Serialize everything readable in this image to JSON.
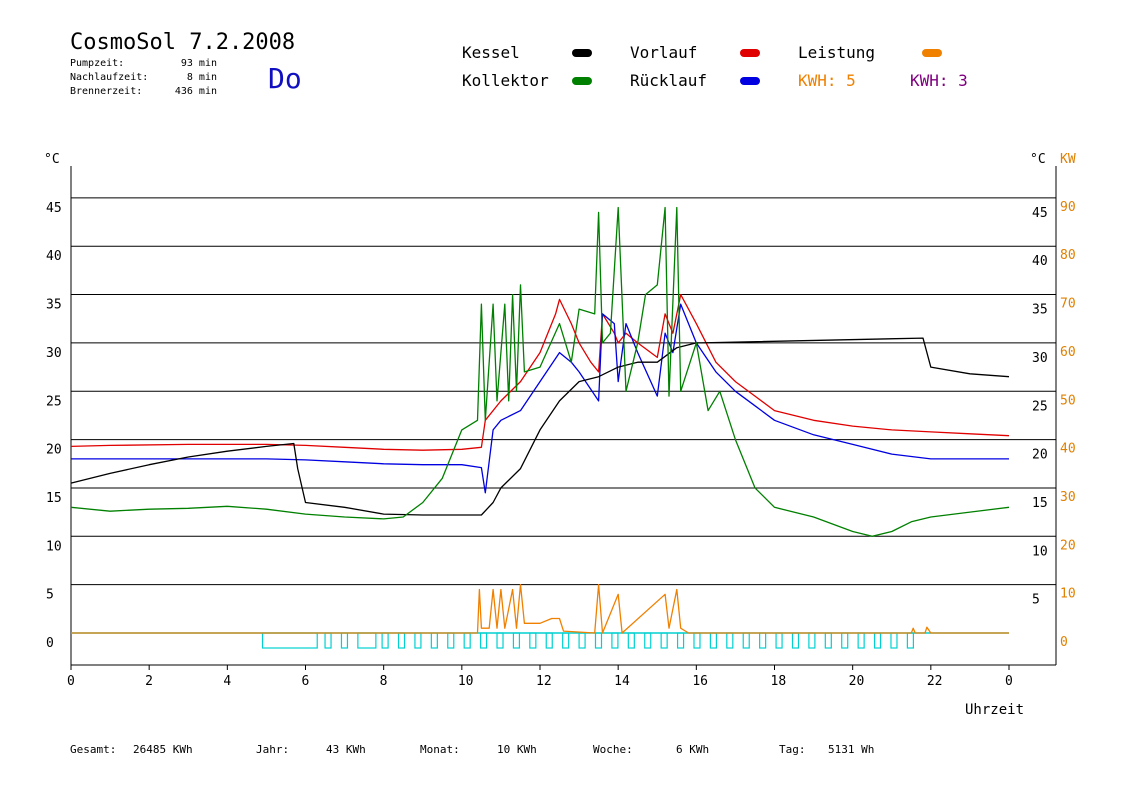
{
  "header": {
    "title": "CosmoSol 7.2.2008",
    "weekday": "Do",
    "stats": [
      {
        "label": "Pumpzeit:",
        "value": "93 min"
      },
      {
        "label": "Nachlaufzeit:",
        "value": "8 min"
      },
      {
        "label": "Brennerzeit:",
        "value": "436 min"
      }
    ]
  },
  "legend": {
    "kessel": {
      "label": "Kessel",
      "color": "#000000"
    },
    "vorlauf": {
      "label": "Vorlauf",
      "color": "#e00000"
    },
    "leistung": {
      "label": "Leistung",
      "color": "#f08000"
    },
    "kollektor": {
      "label": "Kollektor",
      "color": "#008000"
    },
    "ruecklauf": {
      "label": "Rücklauf",
      "color": "#0000e0"
    },
    "kwh1": "KWH: 5",
    "kwh2": "KWH: 3",
    "kwh1_color": "#f08000",
    "kwh2_color": "#800080"
  },
  "footer": {
    "gesamt_label": "Gesamt:",
    "gesamt_value": "26485 KWh",
    "jahr_label": "Jahr:",
    "jahr_value": "43 KWh",
    "monat_label": "Monat:",
    "monat_value": "10 KWh",
    "woche_label": "Woche:",
    "woche_value": "6 KWh",
    "tag_label": "Tag:",
    "tag_value": "5131 Wh"
  },
  "chart_data": {
    "type": "line",
    "xlabel": "Uhrzeit",
    "ylabel_left": "°C",
    "ylabel_right": "°C",
    "ylabel_right2": "KW",
    "xlim": [
      0,
      24
    ],
    "ylim": [
      0,
      45
    ],
    "x_ticks": [
      "0",
      "2",
      "4",
      "6",
      "8",
      "10",
      "12",
      "14",
      "16",
      "18",
      "20",
      "22",
      "0"
    ],
    "y_ticks_left": [
      "45",
      "40",
      "35",
      "30",
      "25",
      "20",
      "15",
      "10",
      "5",
      "0"
    ],
    "y_ticks_right": [
      "45",
      "40",
      "35",
      "30",
      "25",
      "20",
      "15",
      "10",
      "5"
    ],
    "y_ticks_kw": [
      "90",
      "80",
      "70",
      "60",
      "50",
      "40",
      "30",
      "20",
      "10",
      "0"
    ],
    "grid": true,
    "series": [
      {
        "name": "Vorlauf",
        "color": "#e00000",
        "points": [
          [
            0,
            19.3
          ],
          [
            1,
            19.4
          ],
          [
            3,
            19.5
          ],
          [
            5,
            19.5
          ],
          [
            6,
            19.4
          ],
          [
            7,
            19.2
          ],
          [
            8,
            19
          ],
          [
            9,
            18.9
          ],
          [
            10,
            19
          ],
          [
            10.5,
            19.2
          ],
          [
            10.6,
            22
          ],
          [
            11,
            24
          ],
          [
            11.5,
            26
          ],
          [
            12,
            29
          ],
          [
            12.4,
            33
          ],
          [
            12.5,
            34.5
          ],
          [
            12.8,
            32
          ],
          [
            13,
            30
          ],
          [
            13.3,
            28
          ],
          [
            13.5,
            27
          ],
          [
            13.6,
            33
          ],
          [
            13.9,
            31
          ],
          [
            14,
            30
          ],
          [
            14.2,
            31
          ],
          [
            14.5,
            30
          ],
          [
            15,
            28.5
          ],
          [
            15.2,
            33
          ],
          [
            15.4,
            31
          ],
          [
            15.6,
            35
          ],
          [
            16,
            32
          ],
          [
            16.5,
            28
          ],
          [
            17,
            26
          ],
          [
            17.5,
            24.5
          ],
          [
            18,
            23
          ],
          [
            19,
            22
          ],
          [
            20,
            21.4
          ],
          [
            21,
            21
          ],
          [
            22,
            20.8
          ],
          [
            23,
            20.6
          ],
          [
            24,
            20.4
          ]
        ]
      },
      {
        "name": "Rücklauf",
        "color": "#0000e0",
        "points": [
          [
            0,
            18
          ],
          [
            1,
            18
          ],
          [
            3,
            18
          ],
          [
            5,
            18
          ],
          [
            6,
            17.9
          ],
          [
            7,
            17.7
          ],
          [
            8,
            17.5
          ],
          [
            9,
            17.4
          ],
          [
            10,
            17.4
          ],
          [
            10.5,
            17.1
          ],
          [
            10.6,
            14.5
          ],
          [
            10.8,
            21
          ],
          [
            11,
            22
          ],
          [
            11.5,
            23
          ],
          [
            12,
            26
          ],
          [
            12.5,
            29
          ],
          [
            12.8,
            28
          ],
          [
            13,
            27
          ],
          [
            13.5,
            24
          ],
          [
            13.6,
            33
          ],
          [
            13.9,
            32
          ],
          [
            14,
            26
          ],
          [
            14.2,
            32
          ],
          [
            14.5,
            29
          ],
          [
            15,
            24.5
          ],
          [
            15.2,
            31
          ],
          [
            15.4,
            29
          ],
          [
            15.6,
            34
          ],
          [
            16,
            30
          ],
          [
            16.5,
            27
          ],
          [
            17,
            25
          ],
          [
            17.5,
            23.5
          ],
          [
            18,
            22
          ],
          [
            19,
            20.5
          ],
          [
            20,
            19.5
          ],
          [
            21,
            18.5
          ],
          [
            22,
            18
          ],
          [
            23,
            18
          ],
          [
            24,
            18
          ]
        ]
      },
      {
        "name": "Kessel",
        "color": "#000000",
        "points": [
          [
            0,
            15.5
          ],
          [
            1,
            16.5
          ],
          [
            2,
            17.4
          ],
          [
            3,
            18.2
          ],
          [
            4,
            18.8
          ],
          [
            5,
            19.3
          ],
          [
            5.7,
            19.6
          ],
          [
            5.8,
            17
          ],
          [
            6,
            13.5
          ],
          [
            7,
            13
          ],
          [
            8,
            12.3
          ],
          [
            9,
            12.2
          ],
          [
            10,
            12.2
          ],
          [
            10.5,
            12.2
          ],
          [
            10.8,
            13.5
          ],
          [
            11,
            15
          ],
          [
            11.5,
            17
          ],
          [
            12,
            21
          ],
          [
            12.5,
            24
          ],
          [
            13,
            26
          ],
          [
            13.5,
            26.5
          ],
          [
            14,
            27.5
          ],
          [
            14.5,
            28
          ],
          [
            15,
            28
          ],
          [
            15.5,
            29.5
          ],
          [
            16,
            30
          ],
          [
            16.1,
            30
          ],
          [
            21.8,
            30.5
          ],
          [
            22,
            27.5
          ],
          [
            23,
            26.8
          ],
          [
            24,
            26.5
          ]
        ]
      },
      {
        "name": "Kollektor",
        "color": "#008000",
        "points": [
          [
            0,
            13
          ],
          [
            1,
            12.6
          ],
          [
            2,
            12.8
          ],
          [
            3,
            12.9
          ],
          [
            4,
            13.1
          ],
          [
            5,
            12.8
          ],
          [
            6,
            12.3
          ],
          [
            7,
            12
          ],
          [
            8,
            11.8
          ],
          [
            8.5,
            12
          ],
          [
            9,
            13.5
          ],
          [
            9.5,
            16
          ],
          [
            10,
            21
          ],
          [
            10.4,
            22
          ],
          [
            10.5,
            34
          ],
          [
            10.6,
            22
          ],
          [
            10.8,
            34
          ],
          [
            10.9,
            24
          ],
          [
            11.1,
            34
          ],
          [
            11.2,
            24
          ],
          [
            11.3,
            35
          ],
          [
            11.4,
            25
          ],
          [
            11.5,
            36
          ],
          [
            11.6,
            27
          ],
          [
            12,
            27.5
          ],
          [
            12.5,
            32
          ],
          [
            12.8,
            28
          ],
          [
            13,
            33.5
          ],
          [
            13.4,
            33
          ],
          [
            13.5,
            43.5
          ],
          [
            13.6,
            30
          ],
          [
            13.8,
            31
          ],
          [
            14,
            44
          ],
          [
            14.2,
            25
          ],
          [
            14.5,
            30
          ],
          [
            14.7,
            35
          ],
          [
            15,
            36
          ],
          [
            15.2,
            44
          ],
          [
            15.3,
            24.5
          ],
          [
            15.5,
            44
          ],
          [
            15.6,
            25
          ],
          [
            16,
            30
          ],
          [
            16.3,
            23
          ],
          [
            16.6,
            25
          ],
          [
            17,
            20
          ],
          [
            17.5,
            15
          ],
          [
            18,
            13
          ],
          [
            19,
            12
          ],
          [
            20,
            10.5
          ],
          [
            20.5,
            10
          ],
          [
            21,
            10.5
          ],
          [
            21.5,
            11.5
          ],
          [
            22,
            12
          ],
          [
            23,
            12.5
          ],
          [
            24,
            13
          ]
        ]
      },
      {
        "name": "Leistung",
        "color": "#f08000",
        "points": [
          [
            0,
            0
          ],
          [
            10.4,
            0
          ],
          [
            10.45,
            4.5
          ],
          [
            10.5,
            0.5
          ],
          [
            10.7,
            0.5
          ],
          [
            10.8,
            4.5
          ],
          [
            10.9,
            0.5
          ],
          [
            11,
            4.5
          ],
          [
            11.1,
            0.5
          ],
          [
            11.3,
            4.5
          ],
          [
            11.4,
            0.5
          ],
          [
            11.5,
            5
          ],
          [
            11.6,
            1
          ],
          [
            12,
            1
          ],
          [
            12.3,
            1.5
          ],
          [
            12.5,
            1.5
          ],
          [
            12.6,
            0.2
          ],
          [
            13.4,
            0
          ],
          [
            13.5,
            5
          ],
          [
            13.6,
            0
          ],
          [
            14,
            4
          ],
          [
            14.1,
            0
          ],
          [
            15.2,
            4
          ],
          [
            15.3,
            0.5
          ],
          [
            15.5,
            4.5
          ],
          [
            15.6,
            0.5
          ],
          [
            15.8,
            0
          ],
          [
            21.5,
            0
          ],
          [
            21.55,
            0.5
          ],
          [
            21.6,
            0
          ],
          [
            21.85,
            0
          ],
          [
            21.9,
            0.6
          ],
          [
            22,
            0
          ],
          [
            24,
            0
          ]
        ]
      }
    ],
    "pump_status_color": "#00d0d0"
  }
}
